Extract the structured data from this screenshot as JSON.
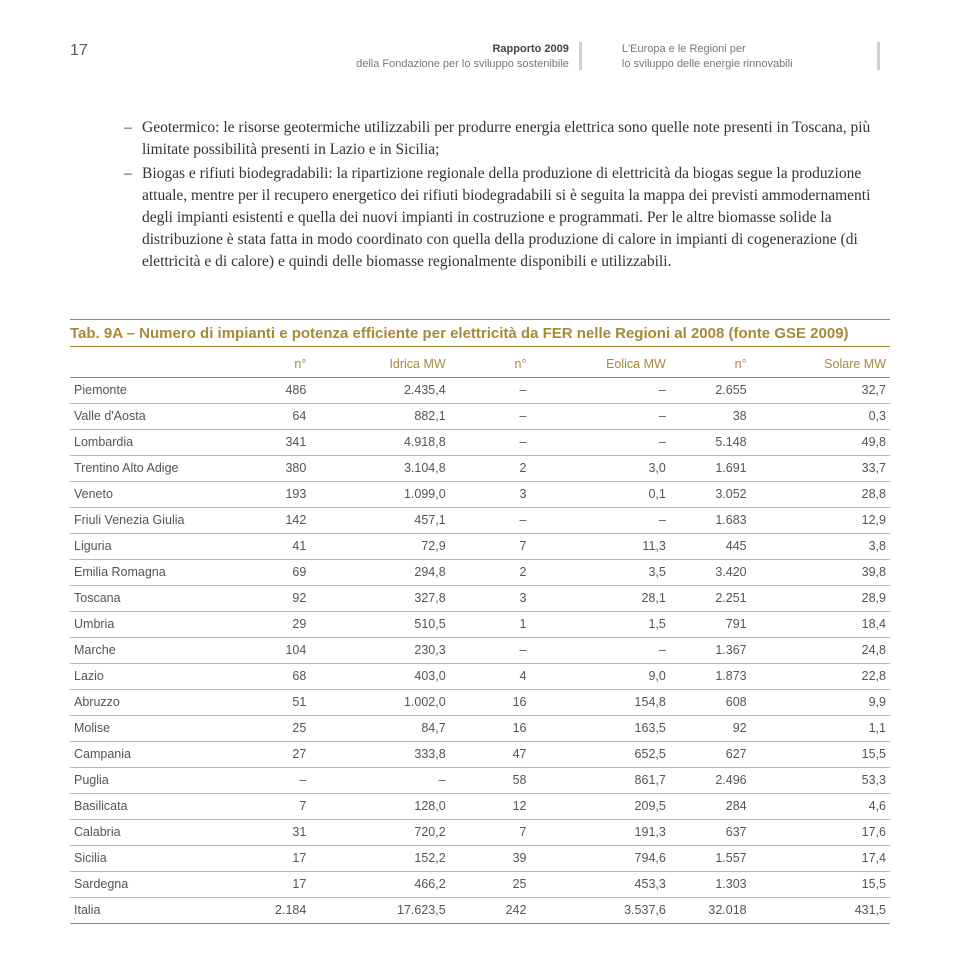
{
  "header": {
    "page_number": "17",
    "center_line1_bold": "Rapporto 2009",
    "center_line2": "della Fondazione per lo sviluppo sostenibile",
    "right_line1": "L'Europa e le Regioni per",
    "right_line2": "lo sviluppo delle energie rinnovabili"
  },
  "body": {
    "item1": "Geotermico: le risorse geotermiche utilizzabili per produrre energia elettrica sono quelle note presenti in Toscana, più limitate possibilità presenti in Lazio e in Sicilia;",
    "item2": "Biogas e rifiuti biodegradabili: la ripartizione regionale della produzione di elettricità da biogas segue la produzione attuale, mentre per il recupero energetico dei rifiuti biodegradabili si è seguita la mappa dei previsti ammodernamenti degli impianti esistenti e quella dei nuovi impianti in costruzione e programmati. Per le altre biomasse solide la distribuzione è stata fatta in modo coordinato con quella della produzione di calore in impianti di cogenerazione (di elettricità e di calore) e quindi delle biomasse regionalmente disponibili e utilizzabili."
  },
  "table": {
    "title": "Tab. 9A – Numero di impianti e potenza efficiente per elettricità da FER nelle Regioni al 2008 (fonte GSE 2009)",
    "columns": [
      "",
      "n°",
      "Idrica MW",
      "n°",
      "Eolica MW",
      "n°",
      "Solare MW"
    ],
    "rows": [
      [
        "Piemonte",
        "486",
        "2.435,4",
        "–",
        "–",
        "2.655",
        "32,7"
      ],
      [
        "Valle d'Aosta",
        "64",
        "882,1",
        "–",
        "–",
        "38",
        "0,3"
      ],
      [
        "Lombardia",
        "341",
        "4.918,8",
        "–",
        "–",
        "5.148",
        "49,8"
      ],
      [
        "Trentino Alto Adige",
        "380",
        "3.104,8",
        "2",
        "3,0",
        "1.691",
        "33,7"
      ],
      [
        "Veneto",
        "193",
        "1.099,0",
        "3",
        "0,1",
        "3.052",
        "28,8"
      ],
      [
        "Friuli Venezia Giulia",
        "142",
        "457,1",
        "–",
        "–",
        "1.683",
        "12,9"
      ],
      [
        "Liguria",
        "41",
        "72,9",
        "7",
        "11,3",
        "445",
        "3,8"
      ],
      [
        "Emilia Romagna",
        "69",
        "294,8",
        "2",
        "3,5",
        "3.420",
        "39,8"
      ],
      [
        "Toscana",
        "92",
        "327,8",
        "3",
        "28,1",
        "2.251",
        "28,9"
      ],
      [
        "Umbria",
        "29",
        "510,5",
        "1",
        "1,5",
        "791",
        "18,4"
      ],
      [
        "Marche",
        "104",
        "230,3",
        "–",
        "–",
        "1.367",
        "24,8"
      ],
      [
        "Lazio",
        "68",
        "403,0",
        "4",
        "9,0",
        "1.873",
        "22,8"
      ],
      [
        "Abruzzo",
        "51",
        "1.002,0",
        "16",
        "154,8",
        "608",
        "9,9"
      ],
      [
        "Molise",
        "25",
        "84,7",
        "16",
        "163,5",
        "92",
        "1,1"
      ],
      [
        "Campania",
        "27",
        "333,8",
        "47",
        "652,5",
        "627",
        "15,5"
      ],
      [
        "Puglia",
        "–",
        "–",
        "58",
        "861,7",
        "2.496",
        "53,3"
      ],
      [
        "Basilicata",
        "7",
        "128,0",
        "12",
        "209,5",
        "284",
        "4,6"
      ],
      [
        "Calabria",
        "31",
        "720,2",
        "7",
        "191,3",
        "637",
        "17,6"
      ],
      [
        "Sicilia",
        "17",
        "152,2",
        "39",
        "794,6",
        "1.557",
        "17,4"
      ],
      [
        "Sardegna",
        "17",
        "466,2",
        "25",
        "453,3",
        "1.303",
        "15,5"
      ],
      [
        "Italia",
        "2.184",
        "17.623,5",
        "242",
        "3.537,6",
        "32.018",
        "431,5"
      ]
    ],
    "colors": {
      "accent": "#a58a3a",
      "text": "#555555",
      "rule": "#c7b888",
      "background": "#ffffff"
    },
    "font": {
      "family": "Arial",
      "body_size_pt": 12.5,
      "title_size_pt": 15
    }
  }
}
